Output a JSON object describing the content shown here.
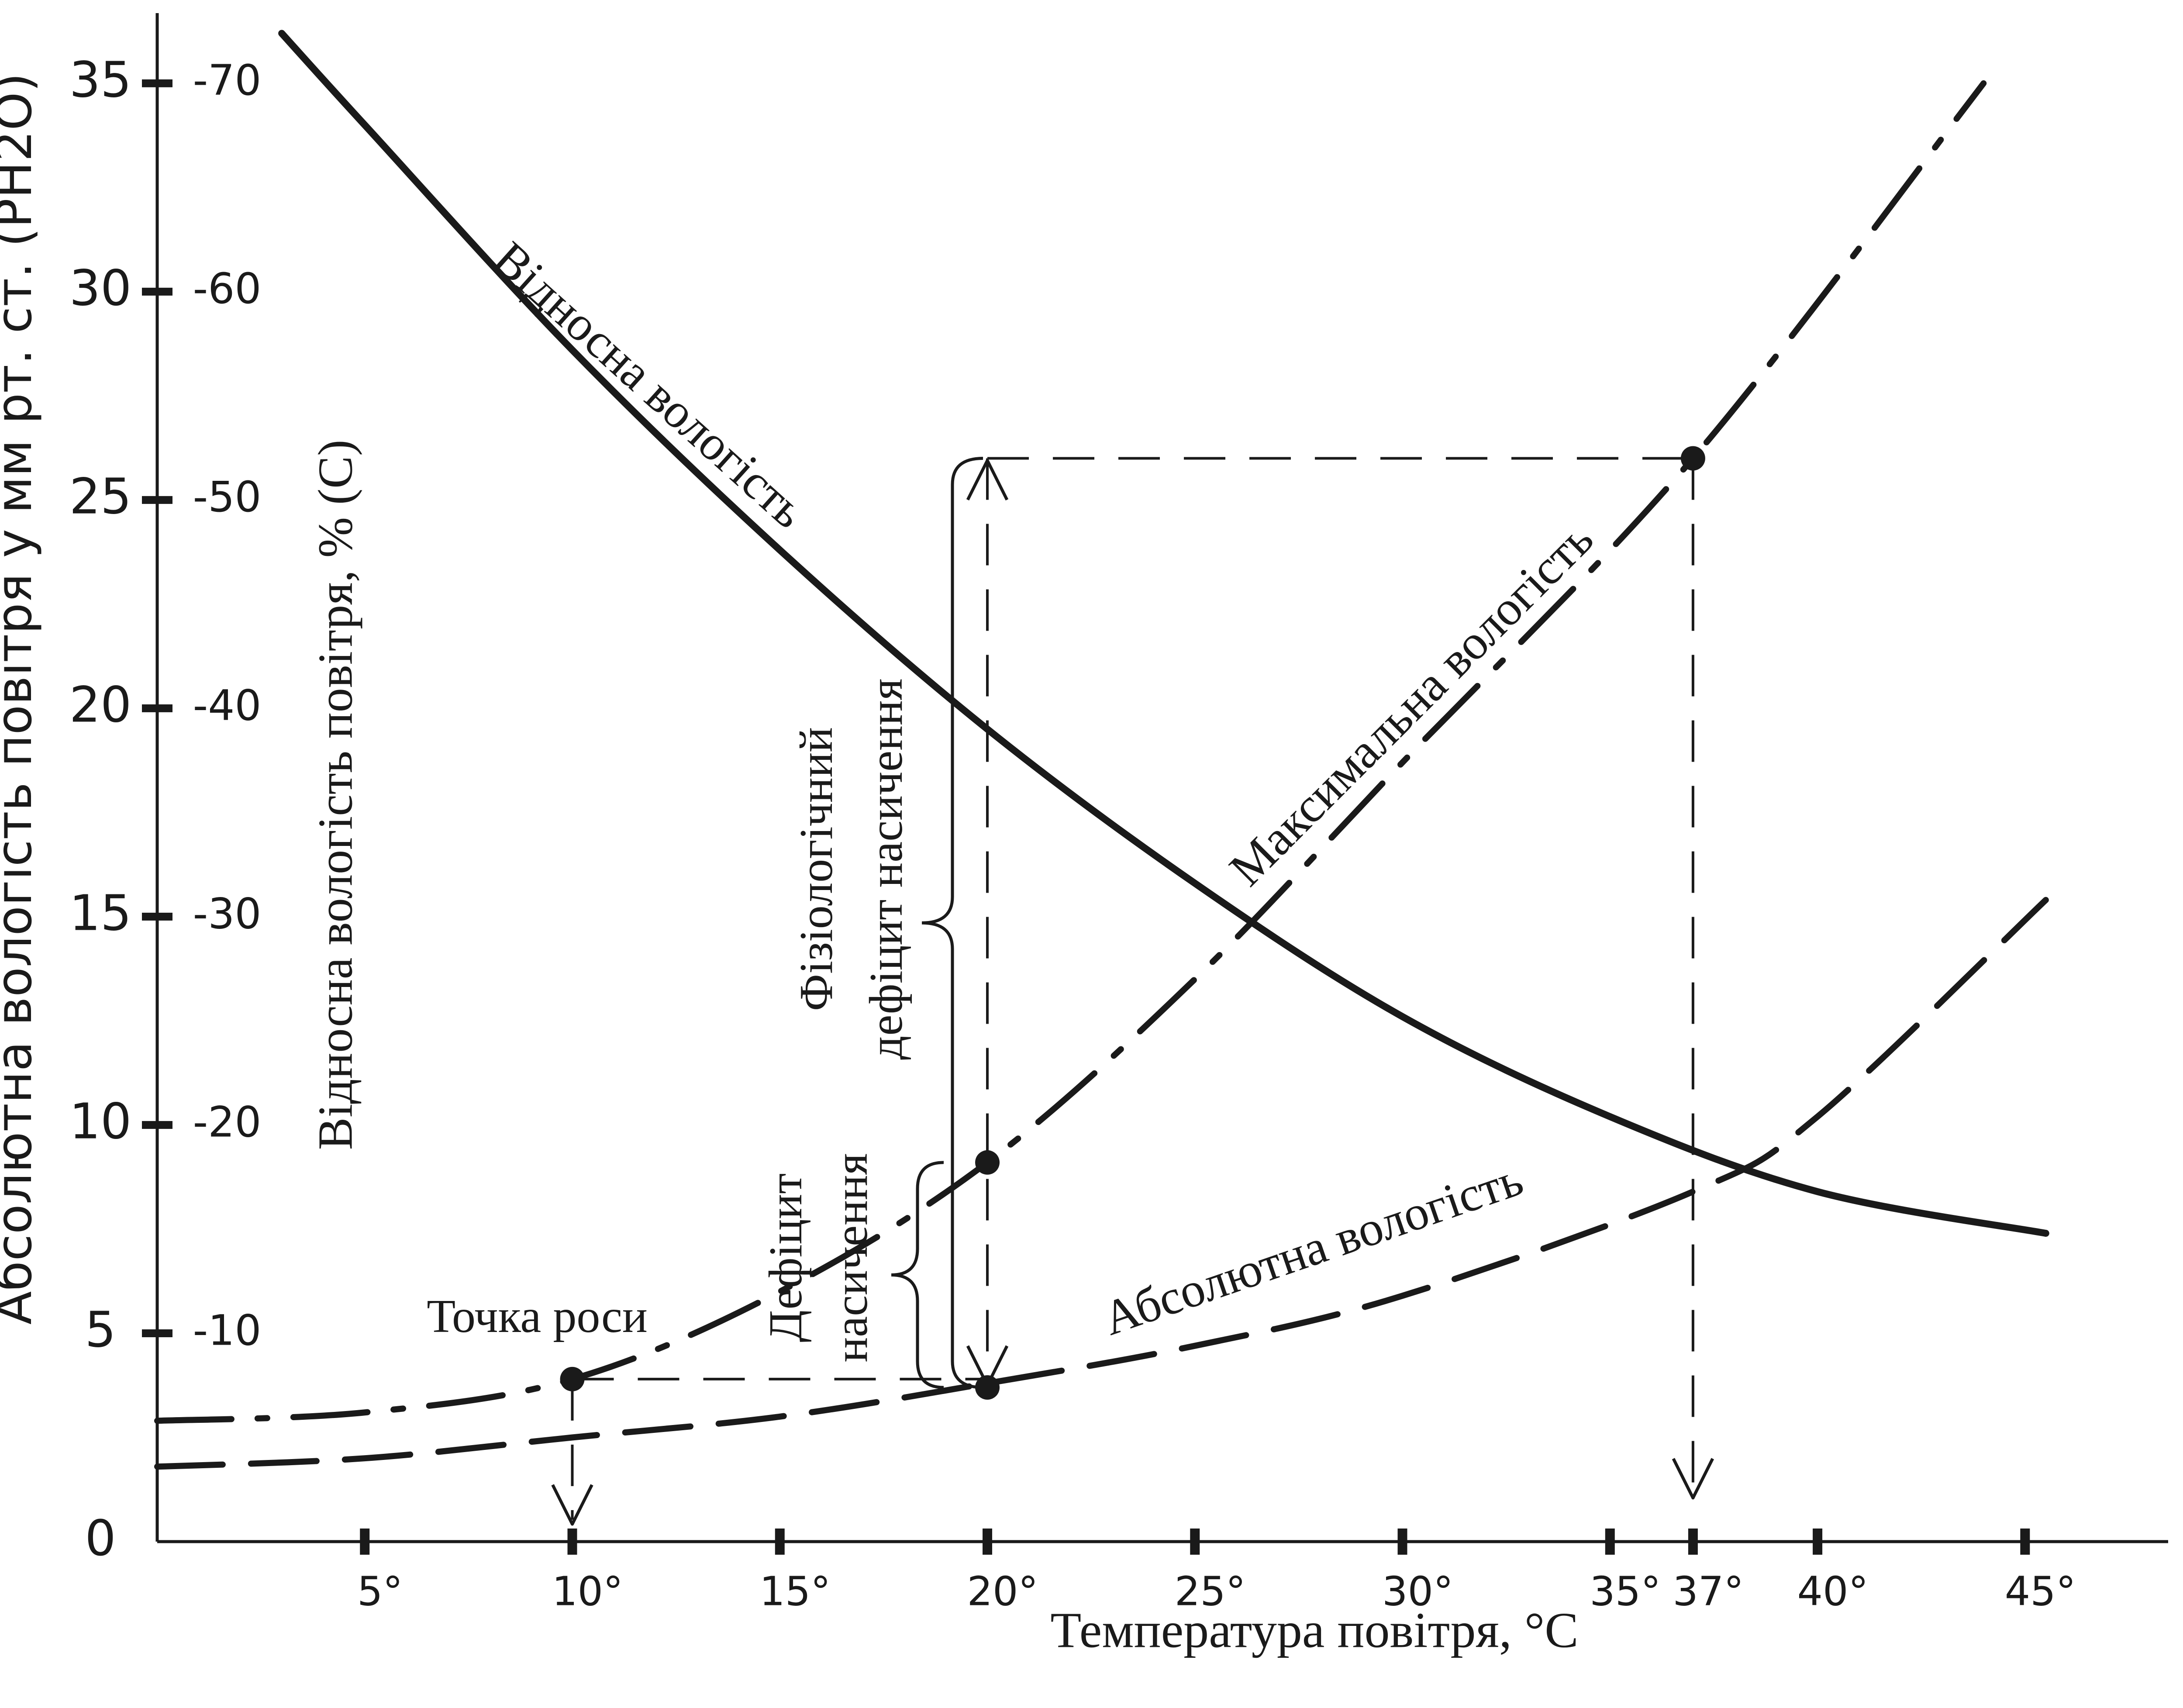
{
  "chart_data": {
    "type": "line",
    "xlabel": "Температура повітря, °C",
    "ylabel_left": "Абсолютна вологість повітря у мм рт. ст. (PH2O)",
    "ylabel_right": "Відносна вологість повітря, % (C)",
    "xlim": [
      0,
      48.5
    ],
    "ylim": [
      0,
      37
    ],
    "x_ticks": [
      {
        "value": 5,
        "label": "5°"
      },
      {
        "value": 10,
        "label": "10°"
      },
      {
        "value": 15,
        "label": "15°"
      },
      {
        "value": 20,
        "label": "20°"
      },
      {
        "value": 25,
        "label": "25°"
      },
      {
        "value": 30,
        "label": "30°"
      },
      {
        "value": 35,
        "label": "35°"
      },
      {
        "value": 37,
        "label": "37°"
      },
      {
        "value": 40,
        "label": "40°"
      },
      {
        "value": 45,
        "label": "45°"
      }
    ],
    "y_ticks_left": [
      {
        "value": 0,
        "label": "0"
      },
      {
        "value": 5,
        "label": "5"
      },
      {
        "value": 10,
        "label": "10"
      },
      {
        "value": 15,
        "label": "15"
      },
      {
        "value": 20,
        "label": "20"
      },
      {
        "value": 25,
        "label": "25"
      },
      {
        "value": 30,
        "label": "30"
      },
      {
        "value": 35,
        "label": "35"
      }
    ],
    "y_ticks_right": [
      {
        "value": 5,
        "label": "-10"
      },
      {
        "value": 10,
        "label": "-20"
      },
      {
        "value": 15,
        "label": "-30"
      },
      {
        "value": 20,
        "label": "-40"
      },
      {
        "value": 25,
        "label": "-50"
      },
      {
        "value": 30,
        "label": "-60"
      },
      {
        "value": 35,
        "label": "-70"
      }
    ],
    "series": [
      {
        "name": "Відносна вологість",
        "style": "solid",
        "x": [
          3,
          5,
          10,
          15,
          20,
          25,
          30,
          35,
          40,
          45.5
        ],
        "y": [
          36.2,
          34.0,
          28.6,
          23.8,
          19.5,
          15.8,
          12.6,
          10.2,
          8.4,
          7.4
        ]
      },
      {
        "name": "Максимальна вологість",
        "style": "dashdot",
        "x": [
          0,
          5,
          10,
          15,
          20,
          25,
          30,
          37,
          44
        ],
        "y": [
          2.9,
          3.1,
          3.9,
          6.0,
          9.1,
          13.5,
          18.7,
          26.0,
          35.0
        ]
      },
      {
        "name": "Абсолютна вологість",
        "style": "dashed",
        "x": [
          0,
          5,
          10,
          15,
          20,
          25,
          30,
          37,
          40,
          45.5
        ],
        "y": [
          1.8,
          2.0,
          2.5,
          3.0,
          3.8,
          4.7,
          5.9,
          8.4,
          10.2,
          15.4
        ]
      }
    ],
    "points": [
      {
        "x": 10,
        "y": 3.9
      },
      {
        "x": 20,
        "y": 9.1
      },
      {
        "x": 20,
        "y": 3.7
      },
      {
        "x": 37,
        "y": 26.0
      }
    ],
    "annotations": {
      "dew_point": "Точка роси",
      "saturation_deficit": [
        "Дефіцит",
        "насичення"
      ],
      "physiological_deficit": [
        "Фізіологічний",
        "дефіцит насичення"
      ]
    }
  }
}
